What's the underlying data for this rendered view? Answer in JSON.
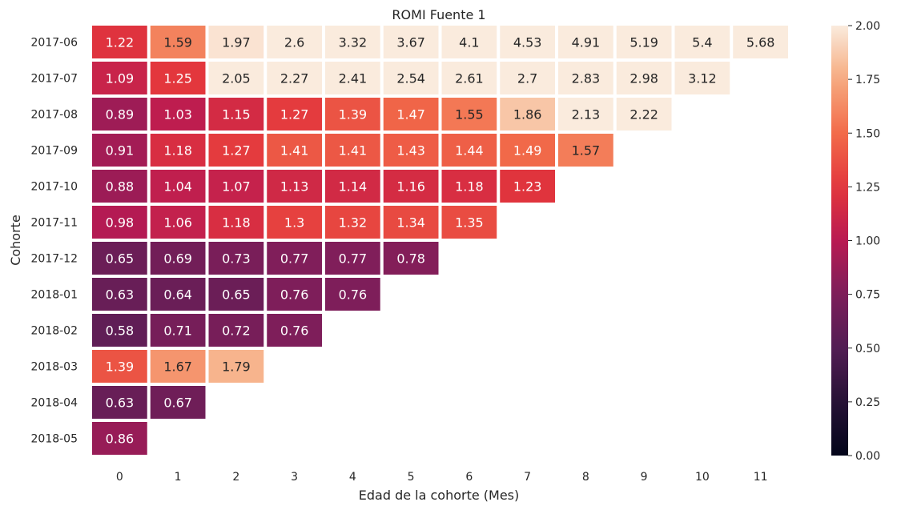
{
  "chart_data": {
    "type": "heatmap",
    "title": "ROMI Fuente 1",
    "xlabel": "Edad de la cohorte (Mes)",
    "ylabel": "Cohorte",
    "x": [
      "0",
      "1",
      "2",
      "3",
      "4",
      "5",
      "6",
      "7",
      "8",
      "9",
      "10",
      "11"
    ],
    "y": [
      "2017-06",
      "2017-07",
      "2017-08",
      "2017-09",
      "2017-10",
      "2017-11",
      "2017-12",
      "2018-01",
      "2018-02",
      "2018-03",
      "2018-04",
      "2018-05"
    ],
    "values": [
      [
        "1.22",
        "1.59",
        "1.97",
        "2.6",
        "3.32",
        "3.67",
        "4.1",
        "4.53",
        "4.91",
        "5.19",
        "5.4",
        "5.68"
      ],
      [
        "1.09",
        "1.25",
        "2.05",
        "2.27",
        "2.41",
        "2.54",
        "2.61",
        "2.7",
        "2.83",
        "2.98",
        "3.12"
      ],
      [
        "0.89",
        "1.03",
        "1.15",
        "1.27",
        "1.39",
        "1.47",
        "1.55",
        "1.86",
        "2.13",
        "2.22"
      ],
      [
        "0.91",
        "1.18",
        "1.27",
        "1.41",
        "1.41",
        "1.43",
        "1.44",
        "1.49",
        "1.57"
      ],
      [
        "0.88",
        "1.04",
        "1.07",
        "1.13",
        "1.14",
        "1.16",
        "1.18",
        "1.23"
      ],
      [
        "0.98",
        "1.06",
        "1.18",
        "1.3",
        "1.32",
        "1.34",
        "1.35"
      ],
      [
        "0.65",
        "0.69",
        "0.73",
        "0.77",
        "0.77",
        "0.78"
      ],
      [
        "0.63",
        "0.64",
        "0.65",
        "0.76",
        "0.76"
      ],
      [
        "0.58",
        "0.71",
        "0.72",
        "0.76"
      ],
      [
        "1.39",
        "1.67",
        "1.79"
      ],
      [
        "0.63",
        "0.67"
      ],
      [
        "0.86"
      ]
    ],
    "vmin": 0,
    "vmax": 2,
    "colormap": "rocket",
    "colorbar_ticks": [
      "0.00",
      "0.25",
      "0.50",
      "0.75",
      "1.00",
      "1.25",
      "1.50",
      "1.75",
      "2.00"
    ],
    "grid": false
  }
}
